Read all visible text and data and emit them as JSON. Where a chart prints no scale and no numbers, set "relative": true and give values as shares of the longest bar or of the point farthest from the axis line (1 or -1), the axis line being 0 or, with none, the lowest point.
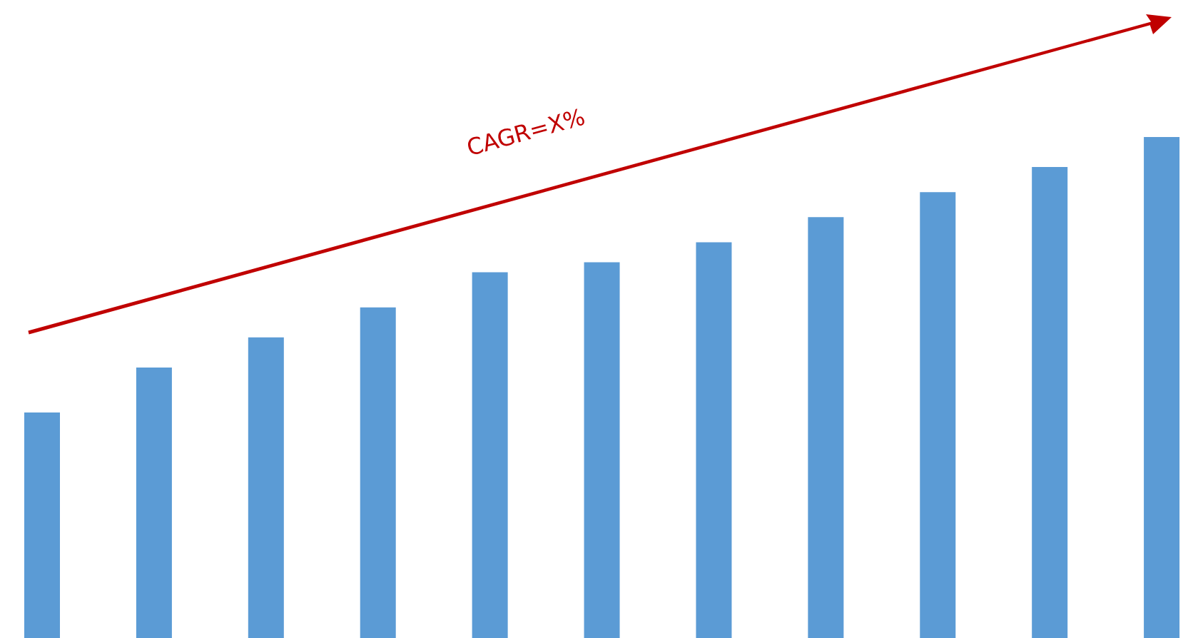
{
  "chart_data": {
    "type": "bar",
    "relative": true,
    "categories": [
      null,
      null,
      null,
      null,
      null,
      null,
      null,
      null,
      null,
      null,
      null
    ],
    "values": [
      0.45,
      0.54,
      0.6,
      0.66,
      0.73,
      0.75,
      0.79,
      0.84,
      0.89,
      0.94,
      1
    ],
    "color": "#5b9bd5",
    "annotations": [
      "CAGR=X%"
    ]
  }
}
